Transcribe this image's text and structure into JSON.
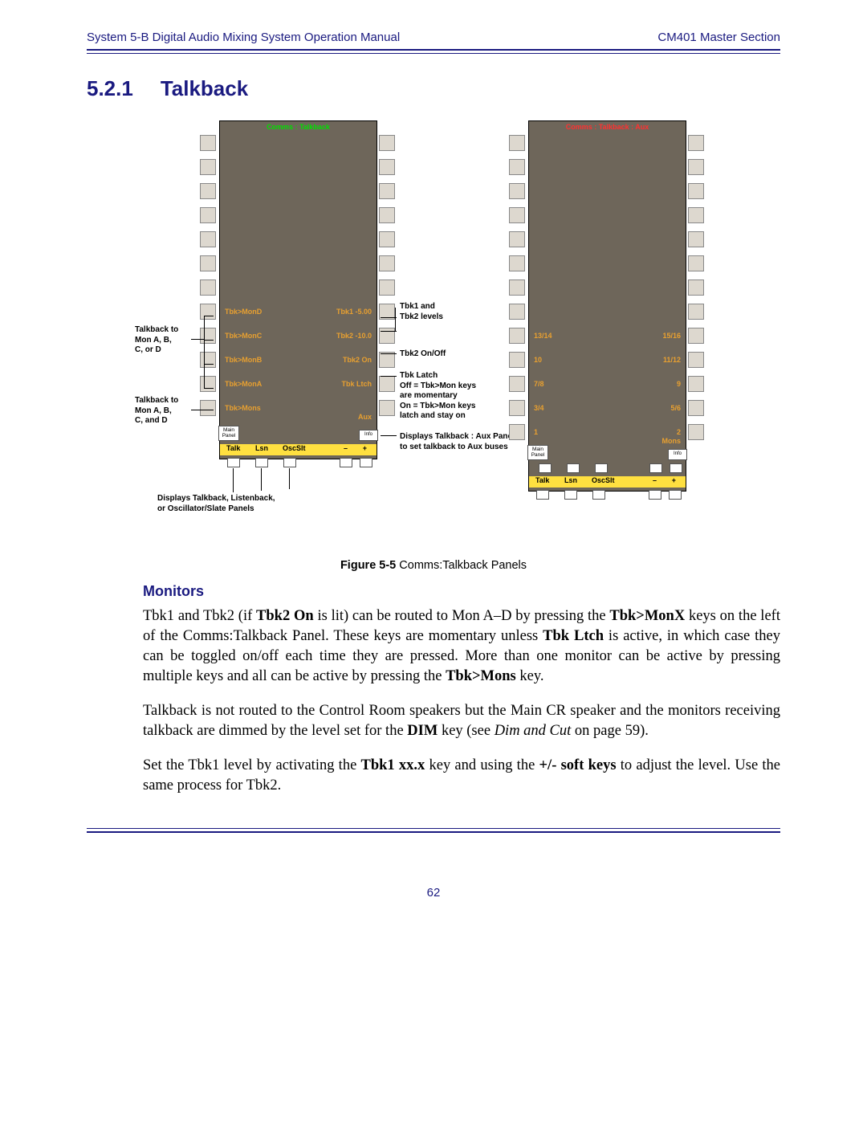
{
  "header": {
    "left": "System 5-B Digital Audio Mixing System Operation Manual",
    "right": "CM401 Master Section"
  },
  "section": {
    "num": "5.2.1",
    "title": "Talkback"
  },
  "panels": {
    "left": {
      "title": "Comms : Talkback",
      "title_color": "#00df00",
      "col1": [
        "Tbk>MonD",
        "Tbk>MonC",
        "Tbk>MonB",
        "Tbk>MonA",
        "Tbk>Mons"
      ],
      "col2": [
        "Tbk1 -5.00",
        "Tbk2 -10.0",
        "Tbk2 On",
        "Tbk Ltch",
        ""
      ],
      "aux": "Aux",
      "main_panel": "Main\nPanel",
      "info": "Info",
      "strip": [
        "Talk",
        "Lsn",
        "OscSlt",
        "–",
        "+"
      ]
    },
    "right": {
      "title": "Comms : Talkback : Aux",
      "title_color": "#ff3030",
      "col1": [
        "13/14",
        "10",
        "7/8",
        "3/4",
        "1"
      ],
      "col2": [
        "15/16",
        "11/12",
        "9",
        "5/6",
        "2"
      ],
      "mons": "Mons",
      "main_panel": "Main\nPanel",
      "info": "Info",
      "strip": [
        "Talk",
        "Lsn",
        "OscSlt",
        "–",
        "+"
      ]
    }
  },
  "annotations": {
    "a1": "Talkback to\nMon A, B,\nC, or D",
    "a2": "Talkback to\nMon A, B,\nC, and D",
    "a3": "Displays Talkback, Listenback,\nor Oscillator/Slate Panels",
    "b1": "Tbk1 and\nTbk2 levels",
    "b2": "Tbk2 On/Off",
    "b3": "Tbk Latch\nOff = Tbk>Mon keys\nare momentary\nOn = Tbk>Mon keys\nlatch and stay on",
    "b4": "Displays Talkback : Aux Panel\nto set talkback to Aux buses"
  },
  "caption": {
    "bold": "Figure 5-5",
    "rest": " Comms:Talkback Panels"
  },
  "subhead": "Monitors",
  "para1": "Tbk1 and Tbk2 (if <b>Tbk2 On</b> is lit) can be routed to Mon A–D by pressing the <b>Tbk>MonX</b> keys on the left of the Comms:Talkback Panel. These keys are momentary unless <b>Tbk Ltch</b> is active, in which case they can be toggled on/off each time they are pressed. More than one monitor can be active by pressing multiple keys and all can be active by pressing the <b>Tbk>Mons</b> key.",
  "para2": "Talkback is not routed to the Control Room speakers but the Main CR speaker and the monitors receiving talkback are dimmed by the level set for the <b>DIM</b> key (see <i>Dim and Cut</i> on page 59).",
  "para3": "Set the Tbk1 level by activating the <b>Tbk1 xx.x</b> key and using the <b>+/- soft keys</b> to adjust the level. Use the same process for Tbk2.",
  "page_number": "62",
  "colors": {
    "ink": "#1a1a80",
    "panel_bg": "#6e665a",
    "orange": "#e8a030",
    "yellow": "#ffe040"
  }
}
